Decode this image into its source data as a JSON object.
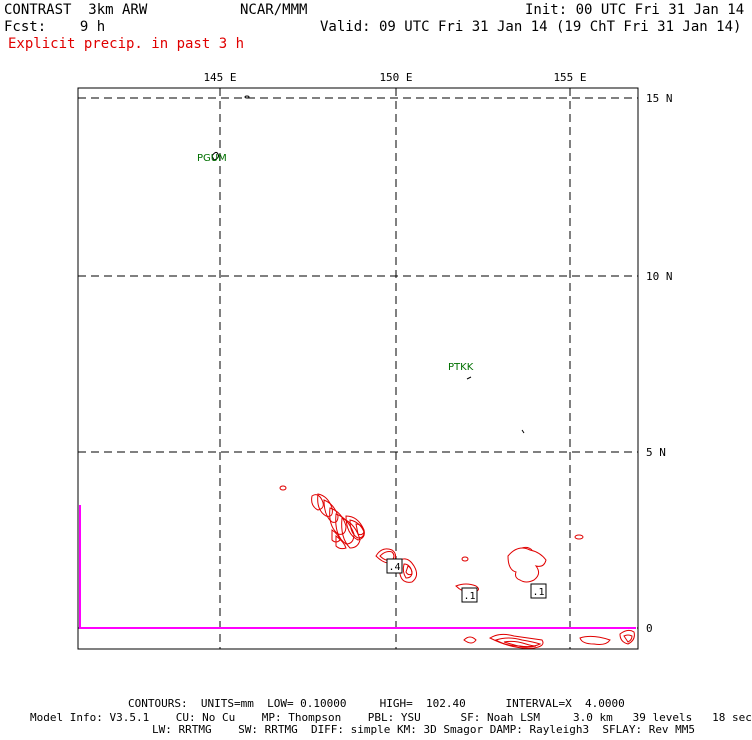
{
  "header": {
    "model": "CONTRAST  3km ARW",
    "center": "NCAR/MMM",
    "init": "Init: 00 UTC Fri 31 Jan 14",
    "fcst": "Fcst:    9 h",
    "valid": "Valid: 09 UTC Fri 31 Jan 14 (19 ChT Fri 31 Jan 14)",
    "field": "Explicit precip. in past 3 h"
  },
  "axes": {
    "lon_labels": [
      "145 E",
      "150 E",
      "155 E"
    ],
    "lat_labels": [
      "15 N",
      "10 N",
      "5 N",
      "0"
    ]
  },
  "stations": [
    {
      "id": "PGUM"
    },
    {
      "id": "PTKK"
    }
  ],
  "contour_labels": [
    ".4",
    ".1",
    ".1"
  ],
  "footer": {
    "contours": "CONTOURS:  UNITS=mm  LOW= 0.10000     HIGH=  102.40      INTERVAL=X  4.0000",
    "model_info_1": "Model Info: V3.5.1    CU: No Cu    MP: Thompson    PBL: YSU      SF: Noah LSM     3.0 km   39 levels   18 sec",
    "model_info_2": "LW: RRTMG    SW: RRTMG  DIFF: simple KM: 3D Smagor DAMP: Rayleigh3  SFLAY: Rev MM5"
  },
  "colors": {
    "contour": "#e00000",
    "station": "#007000",
    "boundary": "#ff00ff",
    "text": "#000000"
  }
}
